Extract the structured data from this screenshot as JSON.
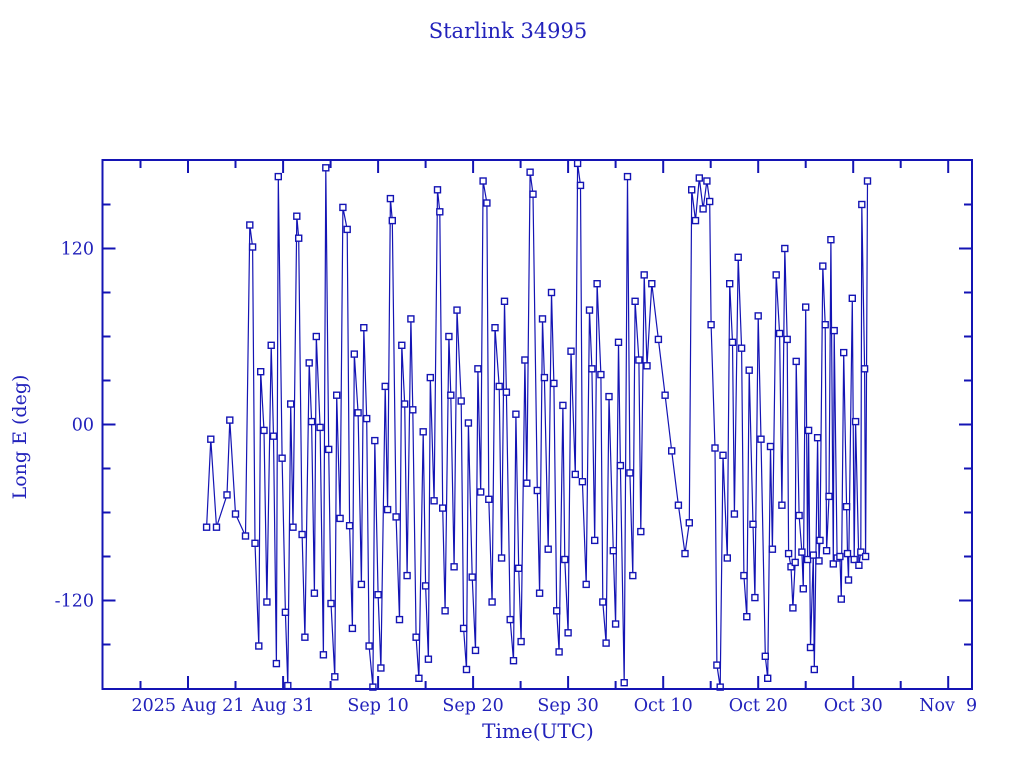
{
  "title": "Starlink 34995",
  "colors": {
    "plot": "#1414b4",
    "text": "#2222bb",
    "background": "#ffffff",
    "marker_fill": "#ffffff"
  },
  "chart_data": {
    "type": "line",
    "title": "Starlink 34995",
    "xlabel": "Time(UTC)",
    "ylabel": "Long E (deg)",
    "x_unit": "days since 2025 Aug 12 00:00 UTC",
    "xlim": [
      0,
      91.5
    ],
    "ylim": [
      -180.3,
      180.3
    ],
    "grid": false,
    "legend": null,
    "marker": "open-square",
    "x_major_ticks": [
      {
        "day": 9,
        "label": "2025 Aug 21"
      },
      {
        "day": 19,
        "label": "Aug 31"
      },
      {
        "day": 29,
        "label": "Sep 10"
      },
      {
        "day": 39,
        "label": "Sep 20"
      },
      {
        "day": 49,
        "label": "Sep 30"
      },
      {
        "day": 59,
        "label": "Oct 10"
      },
      {
        "day": 69,
        "label": "Oct 20"
      },
      {
        "day": 79,
        "label": "Oct 30"
      },
      {
        "day": 89,
        "label": "Nov  9"
      }
    ],
    "x_minor_tick_days": [
      4,
      14,
      24,
      34,
      44,
      54,
      64,
      74,
      84
    ],
    "y_major_ticks": [
      {
        "value": 120,
        "label": "120"
      },
      {
        "value": 0,
        "label": "00"
      },
      {
        "value": -120,
        "label": "-120"
      }
    ],
    "y_minor_tick_values": [
      -150,
      -90,
      -60,
      -30,
      30,
      60,
      90,
      150
    ],
    "points": [
      [
        10.95,
        -70
      ],
      [
        11.4,
        -10
      ],
      [
        12.0,
        -70
      ],
      [
        13.1,
        -48
      ],
      [
        13.4,
        3
      ],
      [
        14.0,
        -61
      ],
      [
        15.05,
        -76
      ],
      [
        15.5,
        136
      ],
      [
        15.8,
        121
      ],
      [
        16.05,
        -81
      ],
      [
        16.45,
        -151
      ],
      [
        16.65,
        36
      ],
      [
        17.0,
        -4
      ],
      [
        17.3,
        -121
      ],
      [
        17.75,
        54
      ],
      [
        18.0,
        -8
      ],
      [
        18.3,
        -163
      ],
      [
        18.5,
        169
      ],
      [
        18.9,
        -23
      ],
      [
        19.25,
        -128
      ],
      [
        19.5,
        -178
      ],
      [
        19.8,
        14
      ],
      [
        20.05,
        -70
      ],
      [
        20.45,
        142
      ],
      [
        20.65,
        127
      ],
      [
        21.0,
        -75
      ],
      [
        21.3,
        -145
      ],
      [
        21.75,
        42
      ],
      [
        22.0,
        2
      ],
      [
        22.3,
        -115
      ],
      [
        22.5,
        60
      ],
      [
        22.9,
        -2
      ],
      [
        23.25,
        -157
      ],
      [
        23.5,
        175
      ],
      [
        23.8,
        -17
      ],
      [
        24.05,
        -122
      ],
      [
        24.45,
        -172
      ],
      [
        24.65,
        20
      ],
      [
        25.0,
        -64
      ],
      [
        25.3,
        148
      ],
      [
        25.75,
        133
      ],
      [
        26.0,
        -69
      ],
      [
        26.3,
        -139
      ],
      [
        26.5,
        48
      ],
      [
        26.9,
        8
      ],
      [
        27.25,
        -109
      ],
      [
        27.5,
        66
      ],
      [
        27.8,
        4
      ],
      [
        28.05,
        -151
      ],
      [
        28.45,
        -179
      ],
      [
        28.65,
        -11
      ],
      [
        29.0,
        -116
      ],
      [
        29.3,
        -166
      ],
      [
        29.75,
        26
      ],
      [
        30.0,
        -58
      ],
      [
        30.3,
        154
      ],
      [
        30.5,
        139
      ],
      [
        30.9,
        -63
      ],
      [
        31.25,
        -133
      ],
      [
        31.5,
        54
      ],
      [
        31.8,
        14
      ],
      [
        32.05,
        -103
      ],
      [
        32.45,
        72
      ],
      [
        32.65,
        10
      ],
      [
        33.0,
        -145
      ],
      [
        33.3,
        -173
      ],
      [
        33.75,
        -5
      ],
      [
        34.0,
        -110
      ],
      [
        34.3,
        -160
      ],
      [
        34.5,
        32
      ],
      [
        34.9,
        -52
      ],
      [
        35.25,
        160
      ],
      [
        35.5,
        145
      ],
      [
        35.8,
        -57
      ],
      [
        36.05,
        -127
      ],
      [
        36.45,
        60
      ],
      [
        36.65,
        20
      ],
      [
        37.0,
        -97
      ],
      [
        37.3,
        78
      ],
      [
        37.75,
        16
      ],
      [
        38.0,
        -139
      ],
      [
        38.3,
        -167
      ],
      [
        38.5,
        1
      ],
      [
        38.9,
        -104
      ],
      [
        39.25,
        -154
      ],
      [
        39.5,
        38
      ],
      [
        39.8,
        -46
      ],
      [
        40.05,
        166
      ],
      [
        40.45,
        151
      ],
      [
        40.65,
        -51
      ],
      [
        41.0,
        -121
      ],
      [
        41.3,
        66
      ],
      [
        41.75,
        26
      ],
      [
        42.0,
        -91
      ],
      [
        42.3,
        84
      ],
      [
        42.5,
        22
      ],
      [
        42.9,
        -133
      ],
      [
        43.25,
        -161
      ],
      [
        43.5,
        7
      ],
      [
        43.8,
        -98
      ],
      [
        44.05,
        -148
      ],
      [
        44.45,
        44
      ],
      [
        44.65,
        -40
      ],
      [
        45.0,
        172
      ],
      [
        45.3,
        157
      ],
      [
        45.75,
        -45
      ],
      [
        46.0,
        -115
      ],
      [
        46.3,
        72
      ],
      [
        46.5,
        32
      ],
      [
        46.9,
        -85
      ],
      [
        47.25,
        90
      ],
      [
        47.5,
        28
      ],
      [
        47.8,
        -127
      ],
      [
        48.05,
        -155
      ],
      [
        48.45,
        13
      ],
      [
        48.65,
        -92
      ],
      [
        49.0,
        -142
      ],
      [
        49.3,
        50
      ],
      [
        49.75,
        -34
      ],
      [
        50.0,
        178
      ],
      [
        50.3,
        163
      ],
      [
        50.5,
        -39
      ],
      [
        50.9,
        -109
      ],
      [
        51.25,
        78
      ],
      [
        51.5,
        38
      ],
      [
        51.8,
        -79
      ],
      [
        52.05,
        96
      ],
      [
        52.45,
        34
      ],
      [
        52.65,
        -121
      ],
      [
        53.0,
        -149
      ],
      [
        53.3,
        19
      ],
      [
        53.75,
        -86
      ],
      [
        54.0,
        -136
      ],
      [
        54.3,
        56
      ],
      [
        54.5,
        -28
      ],
      [
        54.9,
        -176
      ],
      [
        55.25,
        169
      ],
      [
        55.5,
        -33
      ],
      [
        55.8,
        -103
      ],
      [
        56.05,
        84
      ],
      [
        56.45,
        44
      ],
      [
        56.65,
        -73
      ],
      [
        57.0,
        102
      ],
      [
        57.3,
        40
      ],
      [
        57.8,
        96
      ],
      [
        58.5,
        58
      ],
      [
        59.2,
        20
      ],
      [
        59.9,
        -18
      ],
      [
        60.6,
        -55
      ],
      [
        61.3,
        -88
      ],
      [
        61.75,
        -67
      ],
      [
        62.0,
        160
      ],
      [
        62.4,
        139
      ],
      [
        62.8,
        168
      ],
      [
        63.2,
        147
      ],
      [
        63.6,
        166
      ],
      [
        63.9,
        152
      ],
      [
        64.05,
        68
      ],
      [
        64.45,
        -16
      ],
      [
        64.65,
        -164
      ],
      [
        65.0,
        -179
      ],
      [
        65.3,
        -21
      ],
      [
        65.75,
        -91
      ],
      [
        66.0,
        96
      ],
      [
        66.3,
        56
      ],
      [
        66.5,
        -61
      ],
      [
        66.9,
        114
      ],
      [
        67.25,
        52
      ],
      [
        67.5,
        -103
      ],
      [
        67.8,
        -131
      ],
      [
        68.05,
        37
      ],
      [
        68.45,
        -68
      ],
      [
        68.65,
        -118
      ],
      [
        69.0,
        74
      ],
      [
        69.3,
        -10
      ],
      [
        69.75,
        -158
      ],
      [
        70.0,
        -173
      ],
      [
        70.3,
        -15
      ],
      [
        70.5,
        -85
      ],
      [
        70.9,
        102
      ],
      [
        71.25,
        62
      ],
      [
        71.5,
        -55
      ],
      [
        71.8,
        120
      ],
      [
        72.05,
        58
      ],
      [
        72.2,
        -88
      ],
      [
        72.45,
        -97
      ],
      [
        72.65,
        -125
      ],
      [
        72.9,
        -94
      ],
      [
        73.0,
        43
      ],
      [
        73.3,
        -62
      ],
      [
        73.6,
        -87
      ],
      [
        73.75,
        -112
      ],
      [
        74.0,
        80
      ],
      [
        74.2,
        -92
      ],
      [
        74.3,
        -4
      ],
      [
        74.5,
        -152
      ],
      [
        74.8,
        -89
      ],
      [
        74.9,
        -167
      ],
      [
        75.25,
        -9
      ],
      [
        75.4,
        -93
      ],
      [
        75.5,
        -79
      ],
      [
        75.8,
        108
      ],
      [
        76.05,
        68
      ],
      [
        76.2,
        -86
      ],
      [
        76.45,
        -49
      ],
      [
        76.65,
        126
      ],
      [
        76.9,
        -95
      ],
      [
        77.0,
        64
      ],
      [
        77.3,
        -91
      ],
      [
        77.6,
        -90
      ],
      [
        77.75,
        -119
      ],
      [
        78.0,
        49
      ],
      [
        78.3,
        -56
      ],
      [
        78.4,
        -88
      ],
      [
        78.5,
        -106
      ],
      [
        78.9,
        86
      ],
      [
        79.1,
        -92
      ],
      [
        79.25,
        2
      ],
      [
        79.6,
        -96
      ],
      [
        79.8,
        -87
      ],
      [
        79.9,
        150
      ],
      [
        80.2,
        38
      ],
      [
        80.3,
        -90
      ],
      [
        80.5,
        166
      ]
    ]
  }
}
